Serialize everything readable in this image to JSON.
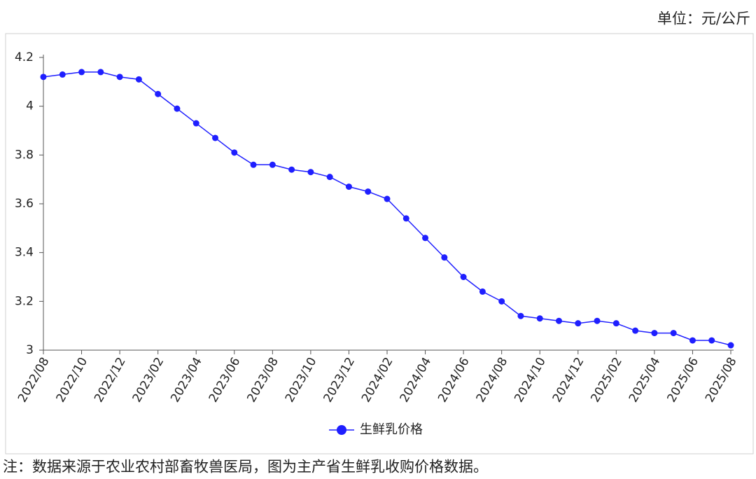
{
  "unit_note": "单位：元/公斤",
  "footnote": "注：数据来源于农业农村部畜牧兽医局，图为主产省生鲜乳收购价格数据。",
  "chart_data": {
    "type": "line",
    "categories": [
      "2022/08",
      null,
      "2022/10",
      null,
      "2022/12",
      null,
      "2023/02",
      null,
      "2023/04",
      null,
      "2023/06",
      null,
      "2023/08",
      null,
      "2023/10",
      null,
      "2023/12",
      null,
      "2024/02",
      null,
      "2024/04",
      null,
      "2024/06",
      null,
      "2024/08",
      null,
      "2024/10",
      null,
      "2024/12",
      null,
      "2025/02",
      null,
      "2025/04",
      null,
      "2025/06",
      null,
      "2025/08"
    ],
    "series": [
      {
        "name": "生鲜乳价格",
        "color": "#1f1fff",
        "values": [
          4.12,
          4.13,
          4.14,
          4.14,
          4.12,
          4.11,
          4.05,
          3.99,
          3.93,
          3.87,
          3.81,
          3.76,
          3.76,
          3.74,
          3.73,
          3.71,
          3.67,
          3.65,
          3.62,
          3.54,
          3.46,
          3.38,
          3.3,
          3.24,
          3.2,
          3.14,
          3.13,
          3.12,
          3.11,
          3.12,
          3.11,
          3.08,
          3.07,
          3.07,
          3.04,
          3.04,
          3.02
        ]
      }
    ],
    "ylim": [
      3,
      4.2
    ],
    "yticks": [
      3,
      3.2,
      3.4,
      3.6,
      3.8,
      4,
      4.2
    ]
  }
}
